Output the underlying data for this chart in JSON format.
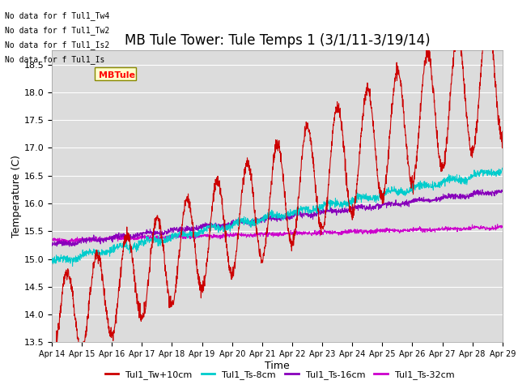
{
  "title": "MB Tule Tower: Tule Temps 1 (3/1/11-3/19/14)",
  "xlabel": "Time",
  "ylabel": "Temperature (C)",
  "ylim": [
    13.5,
    18.75
  ],
  "xlim": [
    0,
    15
  ],
  "xtick_labels": [
    "Apr 14",
    "Apr 15",
    "Apr 16",
    "Apr 17",
    "Apr 18",
    "Apr 19",
    "Apr 20",
    "Apr 21",
    "Apr 22",
    "Apr 23",
    "Apr 24",
    "Apr 25",
    "Apr 26",
    "Apr 27",
    "Apr 28",
    "Apr 29"
  ],
  "bg_color": "#dcdcdc",
  "plot_bg_color": "#dcdcdc",
  "grid_color": "#ffffff",
  "no_data_lines": [
    "No data for f Tul1_Tw4",
    "No data for f Tul1_Tw2",
    "No data for f Tul1_Is2",
    "No data for f Tul1_Is"
  ],
  "tooltip_text": "MBTule",
  "legend": [
    {
      "label": "Tul1_Tw+10cm",
      "color": "#cc0000"
    },
    {
      "label": "Tul1_Ts-8cm",
      "color": "#00cccc"
    },
    {
      "label": "Tul1_Ts-16cm",
      "color": "#8800bb"
    },
    {
      "label": "Tul1_Ts-32cm",
      "color": "#cc00cc"
    }
  ],
  "title_fontsize": 12,
  "axis_fontsize": 9,
  "tick_fontsize": 8
}
